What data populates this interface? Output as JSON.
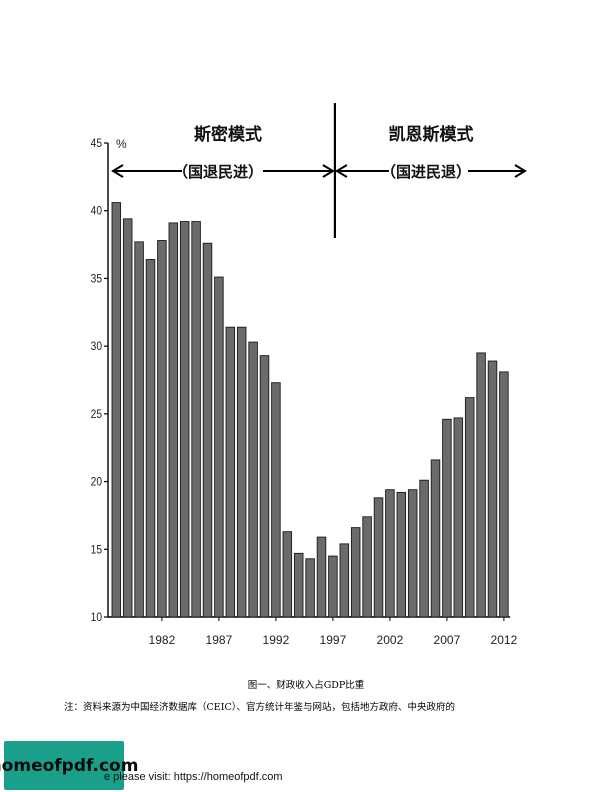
{
  "chart_data": {
    "type": "bar",
    "unit_label": "%",
    "x_tick_labels": [
      "1982",
      "1987",
      "1992",
      "1997",
      "2002",
      "2007",
      "2012"
    ],
    "y_ticks": [
      10,
      15,
      20,
      25,
      30,
      35,
      40,
      45
    ],
    "ylim": [
      10,
      45
    ],
    "x": [
      1978,
      1979,
      1980,
      1981,
      1982,
      1983,
      1984,
      1985,
      1986,
      1987,
      1988,
      1989,
      1990,
      1991,
      1992,
      1993,
      1994,
      1995,
      1996,
      1997,
      1998,
      1999,
      2000,
      2001,
      2002,
      2003,
      2004,
      2005,
      2006,
      2007,
      2008,
      2009,
      2010,
      2011,
      2012
    ],
    "values": [
      40.6,
      39.4,
      37.7,
      36.4,
      37.8,
      39.1,
      39.2,
      39.2,
      37.6,
      35.1,
      31.4,
      31.4,
      30.3,
      29.3,
      27.3,
      16.3,
      14.7,
      14.3,
      15.9,
      14.5,
      15.4,
      16.6,
      17.4,
      18.8,
      19.4,
      19.2,
      19.4,
      20.1,
      21.6,
      24.6,
      24.7,
      26.2,
      29.5,
      28.9,
      28.1
    ],
    "annotations": {
      "left_title": "斯密模式",
      "left_subtitle": "（国退民进）",
      "right_title": "凯恩斯模式",
      "right_subtitle": "（国进民退）"
    },
    "divider_year": 1997,
    "bar_color": "#6b6b6b",
    "grid": false
  },
  "caption": "图一、财政收入占GDP比重",
  "note": "注：资料来源为中国经济数据库（CEIC）、官方统计年鉴与网站，包括地方政府、中央政府的",
  "footer": {
    "brand": "homeofpdf.com",
    "text": "e please visit: https://homeofpdf.com"
  }
}
